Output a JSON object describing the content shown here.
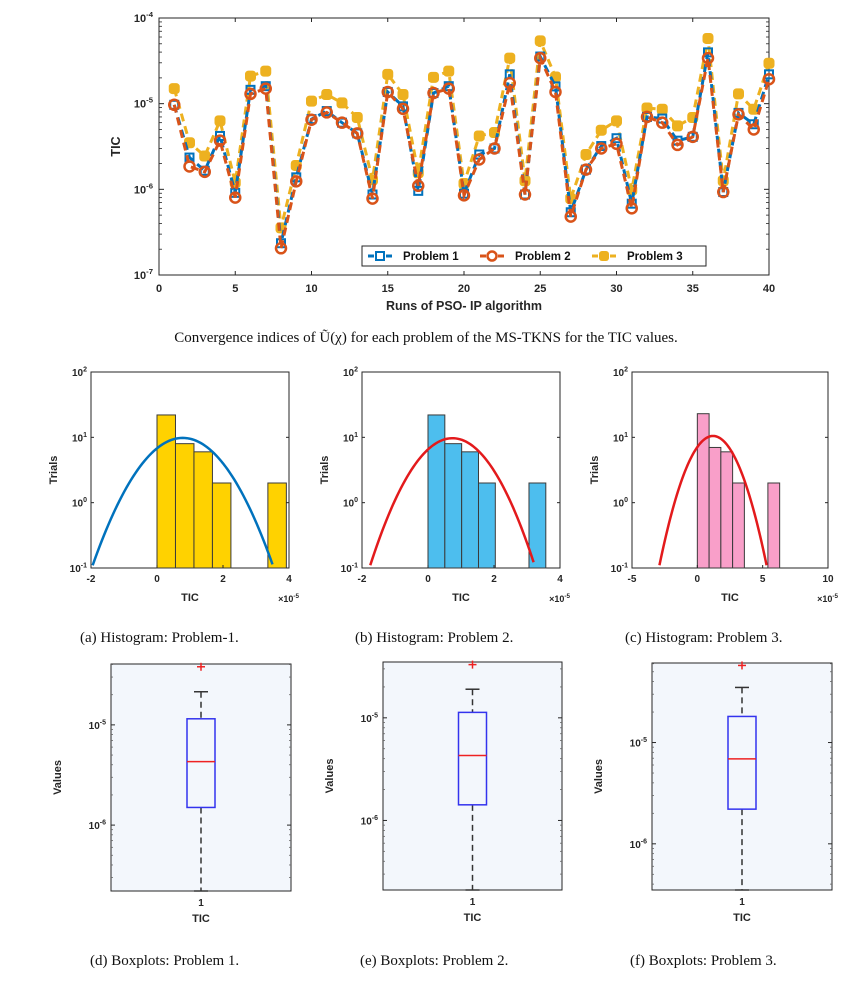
{
  "captions": {
    "main": "Convergence indices of Ũ(χ)  for each problem of the MS-TKNS for the TIC values.",
    "a": "(a) Histogram: Problem-1.",
    "b": "(b) Histogram: Problem 2.",
    "c": "(c) Histogram: Problem 3.",
    "d": "(d) Boxplots: Problem 1.",
    "e": "(e) Boxplots: Problem 2.",
    "f": "(f) Boxplots: Problem 3."
  },
  "colors": {
    "problem1": "#0072BD",
    "problem2": "#D95319",
    "problem3": "#EDB120",
    "hist1_bar": "#FFD200",
    "hist1_curve": "#0072BD",
    "hist2_bar": "#4DBEEE",
    "hist2_curve": "#E31A1C",
    "hist3_bar": "#F99FC9",
    "hist3_curve": "#E31A1C",
    "box_bg": "#F3F7FC",
    "box_edge": "#3333EE",
    "median": "#EE2222",
    "outlier": "#EE2222"
  },
  "chart_data": [
    {
      "id": "convergence",
      "type": "line",
      "title": "",
      "xlabel": "Runs of PSO- IP algorithm",
      "ylabel": "TIC",
      "xlim": [
        0,
        40
      ],
      "ylim": [
        1e-07,
        0.0001
      ],
      "yscale": "log",
      "xticks": [
        0,
        5,
        10,
        15,
        20,
        25,
        30,
        35,
        40
      ],
      "yticks": [
        {
          "base": "10",
          "exp": "-7",
          "value": 1e-07
        },
        {
          "base": "10",
          "exp": "-6",
          "value": 1e-06
        },
        {
          "base": "10",
          "exp": "-5",
          "value": 1e-05
        },
        {
          "base": "10",
          "exp": "-4",
          "value": 0.0001
        }
      ],
      "legend_position": "bottom-right",
      "x": [
        1,
        2,
        3,
        4,
        5,
        6,
        7,
        8,
        9,
        10,
        11,
        12,
        13,
        14,
        15,
        16,
        17,
        18,
        19,
        20,
        21,
        22,
        23,
        24,
        25,
        26,
        27,
        28,
        29,
        30,
        31,
        32,
        33,
        34,
        35,
        36,
        37,
        38,
        39,
        40
      ],
      "series": [
        {
          "name": "Problem 1",
          "marker": "square",
          "color_key": "problem1",
          "values": [
            9.7e-06,
            2.35e-06,
            1.65e-06,
            4.2e-06,
            9.1e-07,
            1.45e-05,
            1.6e-05,
            2.35e-07,
            1.38e-06,
            6.6e-06,
            8.2e-06,
            6e-06,
            4.5e-06,
            8.7e-07,
            1.37e-05,
            9.3e-06,
            9.6e-07,
            1.33e-05,
            1.6e-05,
            8.9e-07,
            2.55e-06,
            3e-06,
            2.2e-05,
            8.7e-07,
            3.55e-05,
            1.59e-05,
            5.4e-07,
            1.7e-06,
            3.2e-06,
            3.95e-06,
            6.8e-07,
            7e-06,
            6.7e-06,
            3.7e-06,
            4.1e-06,
            3.97e-05,
            9.3e-07,
            7.8e-06,
            5.75e-06,
            2.2e-05
          ]
        },
        {
          "name": "Problem 2",
          "marker": "circle",
          "color_key": "problem2",
          "values": [
            9.7e-06,
            1.85e-06,
            1.6e-06,
            3.7e-06,
            8e-07,
            1.3e-05,
            1.5e-05,
            2.05e-07,
            1.24e-06,
            6.5e-06,
            7.9e-06,
            6e-06,
            4.5e-06,
            7.8e-07,
            1.37e-05,
            8.7e-06,
            1.1e-06,
            1.33e-05,
            1.5e-05,
            8.5e-07,
            2.23e-06,
            3e-06,
            1.74e-05,
            8.7e-07,
            3.4e-05,
            1.37e-05,
            4.8e-07,
            1.7e-06,
            3e-06,
            3.4e-06,
            6e-07,
            7e-06,
            6e-06,
            3.3e-06,
            4.1e-06,
            3.4e-05,
            9.3e-07,
            7.5e-06,
            5e-06,
            1.93e-05
          ]
        },
        {
          "name": "Problem 3",
          "marker": "filled-square",
          "color_key": "problem3",
          "values": [
            1.5e-05,
            3.5e-06,
            2.45e-06,
            6.3e-06,
            1.2e-06,
            2.1e-05,
            2.4e-05,
            3.55e-07,
            1.9e-06,
            1.07e-05,
            1.28e-05,
            1.02e-05,
            6.9e-06,
            1.29e-06,
            2.2e-05,
            1.28e-05,
            1.56e-06,
            2.03e-05,
            2.4e-05,
            1.17e-06,
            4.2e-06,
            4.6e-06,
            3.4e-05,
            1.26e-06,
            5.4e-05,
            2.05e-05,
            7.8e-07,
            2.55e-06,
            4.9e-06,
            6.3e-06,
            9.8e-07,
            8.9e-06,
            8.6e-06,
            5.5e-06,
            6.9e-06,
            5.77e-05,
            1.26e-06,
            1.3e-05,
            8.6e-06,
            2.96e-05
          ]
        }
      ]
    },
    {
      "id": "hist1",
      "type": "bar",
      "title": "",
      "xlabel": "TIC",
      "ylabel": "Trials",
      "x_multiplier": {
        "base": "×10",
        "exp": "-5"
      },
      "xlim": [
        -2,
        4
      ],
      "ylim": [
        0.1,
        100
      ],
      "yscale": "log",
      "xticks": [
        -2,
        0,
        2,
        4
      ],
      "yticks": [
        {
          "base": "10",
          "exp": "-1",
          "value": 0.1
        },
        {
          "base": "10",
          "exp": "0",
          "value": 1
        },
        {
          "base": "10",
          "exp": "1",
          "value": 10
        },
        {
          "base": "10",
          "exp": "2",
          "value": 100
        }
      ],
      "bin_edges": [
        0,
        0.56,
        1.12,
        1.68,
        2.24,
        2.8,
        3.36,
        3.92
      ],
      "counts": [
        22,
        8,
        6,
        2,
        0,
        0,
        2
      ],
      "fit_curve": {
        "type": "normal",
        "mean": 0.78,
        "peak": 9.8,
        "xrange": [
          -1.95,
          3.5
        ]
      },
      "bar_color_key": "hist1_bar",
      "curve_color_key": "hist1_curve"
    },
    {
      "id": "hist2",
      "type": "bar",
      "title": "",
      "xlabel": "TIC",
      "ylabel": "Trials",
      "x_multiplier": {
        "base": "×10",
        "exp": "-5"
      },
      "xlim": [
        -2,
        4
      ],
      "ylim": [
        0.1,
        100
      ],
      "yscale": "log",
      "xticks": [
        -2,
        0,
        2,
        4
      ],
      "yticks": [
        {
          "base": "10",
          "exp": "-1",
          "value": 0.1
        },
        {
          "base": "10",
          "exp": "0",
          "value": 1
        },
        {
          "base": "10",
          "exp": "1",
          "value": 10
        },
        {
          "base": "10",
          "exp": "2",
          "value": 100
        }
      ],
      "bin_edges": [
        0,
        0.51,
        1.02,
        1.53,
        2.04,
        2.55,
        3.06,
        3.57
      ],
      "counts": [
        22,
        8,
        6,
        2,
        0,
        0,
        2
      ],
      "fit_curve": {
        "type": "normal",
        "mean": 0.74,
        "peak": 9.7,
        "xrange": [
          -1.75,
          3.2
        ]
      },
      "bar_color_key": "hist2_bar",
      "curve_color_key": "hist2_curve"
    },
    {
      "id": "hist3",
      "type": "bar",
      "title": "",
      "xlabel": "TIC",
      "ylabel": "Trials",
      "x_multiplier": {
        "base": "×10",
        "exp": "-5"
      },
      "xlim": [
        -5,
        10
      ],
      "ylim": [
        0.1,
        100
      ],
      "yscale": "log",
      "xticks": [
        -5,
        0,
        5,
        10
      ],
      "yticks": [
        {
          "base": "10",
          "exp": "-1",
          "value": 0.1
        },
        {
          "base": "10",
          "exp": "0",
          "value": 1
        },
        {
          "base": "10",
          "exp": "1",
          "value": 10
        },
        {
          "base": "10",
          "exp": "2",
          "value": 100
        }
      ],
      "bin_edges": [
        0,
        0.9,
        1.8,
        2.7,
        3.6,
        4.5,
        5.4,
        6.3
      ],
      "counts": [
        23,
        7,
        6,
        2,
        0,
        0,
        2
      ],
      "fit_curve": {
        "type": "normal",
        "mean": 1.2,
        "peak": 10.5,
        "xrange": [
          -2.9,
          5.3
        ]
      },
      "bar_color_key": "hist3_bar",
      "curve_color_key": "hist3_curve"
    },
    {
      "id": "box1",
      "type": "box",
      "xlabel": "TIC",
      "ylabel": "Values",
      "xticks": [
        "1"
      ],
      "yscale": "log",
      "ylim": [
        2.2e-07,
        4.05e-05
      ],
      "yticks": [
        {
          "base": "10",
          "exp": "-6",
          "value": 1e-06
        },
        {
          "base": "10",
          "exp": "-5",
          "value": 1e-05
        }
      ],
      "whisker_low": 2.2e-07,
      "q1": 1.5e-06,
      "median": 4.3e-06,
      "q3": 1.15e-05,
      "whisker_high": 2.14e-05,
      "outliers": [
        3.8e-05
      ]
    },
    {
      "id": "box2",
      "type": "box",
      "xlabel": "TIC",
      "ylabel": "Values",
      "xticks": [
        "1"
      ],
      "yscale": "log",
      "ylim": [
        2.1e-07,
        3.5e-05
      ],
      "yticks": [
        {
          "base": "10",
          "exp": "-6",
          "value": 1e-06
        },
        {
          "base": "10",
          "exp": "-5",
          "value": 1e-05
        }
      ],
      "whisker_low": 2.1e-07,
      "q1": 1.42e-06,
      "median": 4.3e-06,
      "q3": 1.13e-05,
      "whisker_high": 1.9e-05,
      "outliers": [
        3.3e-05
      ]
    },
    {
      "id": "box3",
      "type": "box",
      "xlabel": "TIC",
      "ylabel": "Values",
      "xticks": [
        "1"
      ],
      "yscale": "log",
      "ylim": [
        3.5e-07,
        6.1e-05
      ],
      "yticks": [
        {
          "base": "10",
          "exp": "-6",
          "value": 1e-06
        },
        {
          "base": "10",
          "exp": "-5",
          "value": 1e-05
        }
      ],
      "whisker_low": 3.5e-07,
      "q1": 2.2e-06,
      "median": 6.9e-06,
      "q3": 1.81e-05,
      "whisker_high": 3.5e-05,
      "outliers": [
        5.77e-05
      ]
    }
  ]
}
